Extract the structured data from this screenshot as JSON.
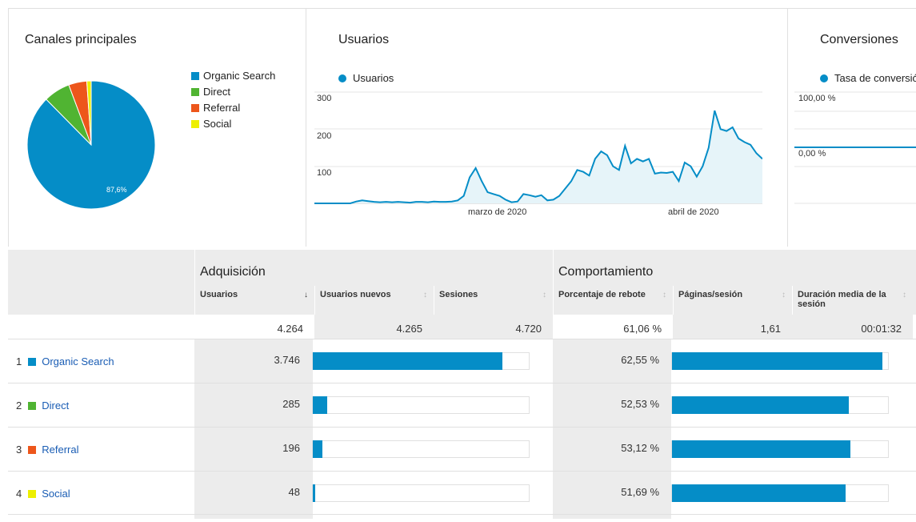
{
  "colors": {
    "organic": "#058dc7",
    "direct": "#50b432",
    "referral": "#ed561b",
    "social": "#edef00",
    "line": "#058dc7",
    "area": "#e6f4f9"
  },
  "channels_panel": {
    "title": "Canales principales",
    "legend": [
      "Organic Search",
      "Direct",
      "Referral",
      "Social"
    ],
    "pie_label": "87,6%"
  },
  "users_panel": {
    "title": "Usuarios",
    "legend": "Usuarios",
    "y_ticks": [
      "300",
      "200",
      "100"
    ],
    "x_ticks": [
      "marzo de 2020",
      "abril de 2020"
    ]
  },
  "conversions_panel": {
    "title": "Conversiones",
    "legend": "Tasa de conversión",
    "y_ticks": [
      "100,00 %",
      "0,00 %"
    ]
  },
  "chart_data": [
    {
      "type": "pie",
      "title": "Canales principales",
      "categories": [
        "Organic Search",
        "Direct",
        "Referral",
        "Social"
      ],
      "values": [
        87.6,
        6.7,
        4.6,
        1.1
      ],
      "data_labels": [
        "87,6%"
      ]
    },
    {
      "type": "area",
      "title": "Usuarios",
      "series": [
        {
          "name": "Usuarios",
          "values": [
            0,
            0,
            0,
            0,
            0,
            0,
            0,
            5,
            8,
            6,
            4,
            3,
            4,
            3,
            4,
            3,
            2,
            4,
            4,
            3,
            5,
            4,
            4,
            5,
            8,
            20,
            70,
            95,
            60,
            30,
            25,
            20,
            10,
            3,
            5,
            25,
            22,
            18,
            22,
            8,
            10,
            20,
            40,
            60,
            90,
            85,
            75,
            120,
            140,
            130,
            100,
            90,
            155,
            108,
            120,
            113,
            120,
            80,
            83,
            82,
            85,
            60,
            110,
            100,
            72,
            100,
            150,
            250,
            200,
            195,
            205,
            175,
            165,
            158,
            135,
            120
          ]
        }
      ],
      "x_ticks": [
        "marzo de 2020",
        "abril de 2020"
      ],
      "y_ticks": [
        100,
        200,
        300
      ],
      "ylim": [
        0,
        300
      ]
    },
    {
      "type": "line",
      "title": "Conversiones",
      "series": [
        {
          "name": "Tasa de conversión",
          "values": [
            0,
            0
          ]
        }
      ],
      "y_ticks": [
        "100,00 %",
        "0,00 %"
      ]
    },
    {
      "type": "bar",
      "title": "Usuarios",
      "categories": [
        "Organic Search",
        "Direct",
        "Referral",
        "Social"
      ],
      "values": [
        3746,
        285,
        196,
        48
      ]
    },
    {
      "type": "bar",
      "title": "Porcentaje de rebote",
      "categories": [
        "Organic Search",
        "Direct",
        "Referral",
        "Social"
      ],
      "values": [
        62.55,
        52.53,
        53.12,
        51.69
      ]
    }
  ],
  "table": {
    "group_acquisition": "Adquisición",
    "group_behavior": "Comportamiento",
    "columns": [
      "Usuarios",
      "Usuarios nuevos",
      "Sesiones",
      "Porcentaje de rebote",
      "Páginas/sesión",
      "Duración media de la sesión"
    ],
    "sort_active_icon": "↓",
    "sort_icon": "↕",
    "totals": [
      "4.264",
      "4.265",
      "4.720",
      "61,06 %",
      "1,61",
      "00:01:32"
    ],
    "rows": [
      {
        "num": "1",
        "name": "Organic Search",
        "users": "3.746",
        "users_bar": 0.878,
        "bounce": "62,55 %",
        "bounce_bar": 0.9746
      },
      {
        "num": "2",
        "name": "Direct",
        "users": "285",
        "users_bar": 0.067,
        "bounce": "52,53 %",
        "bounce_bar": 0.8185
      },
      {
        "num": "3",
        "name": "Referral",
        "users": "196",
        "users_bar": 0.046,
        "bounce": "53,12 %",
        "bounce_bar": 0.8277
      },
      {
        "num": "4",
        "name": "Social",
        "users": "48",
        "users_bar": 0.011,
        "bounce": "51,69 %",
        "bounce_bar": 0.8054
      }
    ]
  }
}
